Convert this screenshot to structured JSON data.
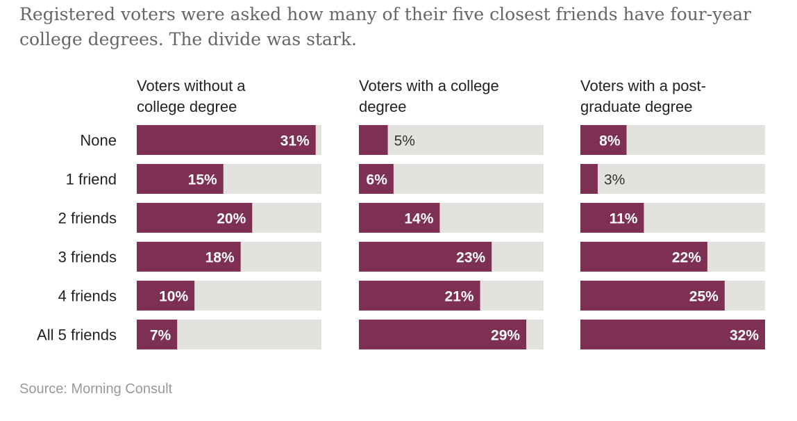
{
  "subtitle": "Registered voters were asked how many of their five closest friends have four-year college degrees. The divide was stark.",
  "source": "Source: Morning Consult",
  "chart_data": {
    "type": "bar",
    "orientation": "horizontal",
    "layout": "small multiples",
    "categories": [
      "None",
      "1 friend",
      "2 friends",
      "3 friends",
      "4 friends",
      "All 5 friends"
    ],
    "xlim": [
      0,
      32
    ],
    "value_suffix": "%",
    "series": [
      {
        "name": "Voters without a college degree",
        "title_lines": [
          "Voters without a",
          "college degree"
        ],
        "values": [
          31,
          15,
          20,
          18,
          10,
          7
        ]
      },
      {
        "name": "Voters with a college degree",
        "title_lines": [
          "Voters with a college",
          "degree"
        ],
        "values": [
          5,
          6,
          14,
          23,
          21,
          29
        ]
      },
      {
        "name": "Voters with a post-graduate degree",
        "title_lines": [
          "Voters with a post-",
          "graduate degree"
        ],
        "values": [
          8,
          3,
          11,
          22,
          25,
          32
        ]
      }
    ]
  },
  "colors": {
    "bar": "#7e2f54",
    "track": "#e4e2de",
    "label_inside": "#ffffff",
    "label_outside": "#333333",
    "category_text": "#222222",
    "panel_title": "#222222"
  }
}
